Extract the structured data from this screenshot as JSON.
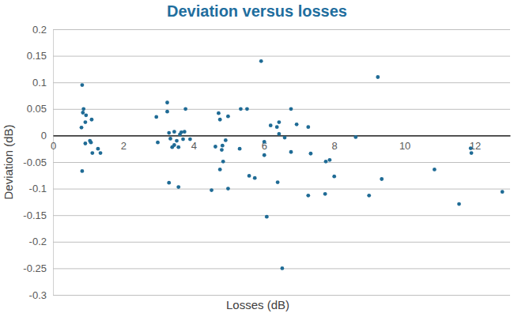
{
  "chart_data": {
    "type": "scatter",
    "title": "Deviation versus losses",
    "x_label": "Losses (dB)",
    "y_label": "Deviation (dB)",
    "color": "#1f6b95",
    "marker": "circle",
    "grid": true,
    "xlim": [
      0,
      13
    ],
    "xticks": [
      0,
      2,
      4,
      6,
      8,
      10,
      12
    ],
    "ylim": [
      -0.3,
      0.2
    ],
    "yticks": [
      0.2,
      0.15,
      0.1,
      0.05,
      0,
      -0.05,
      -0.1,
      -0.15,
      -0.2,
      -0.25,
      -0.3
    ],
    "x": [
      0.83,
      0.87,
      0.85,
      0.94,
      0.81,
      0.92,
      1.1,
      0.92,
      1.05,
      1.08,
      1.12,
      1.28,
      1.35,
      0.83,
      2.94,
      2.98,
      3.25,
      3.25,
      3.3,
      3.34,
      3.39,
      3.45,
      3.45,
      3.52,
      3.57,
      3.61,
      3.65,
      3.7,
      3.77,
      3.3,
      3.57,
      3.74,
      3.9,
      4.71,
      4.75,
      4.62,
      4.82,
      4.75,
      4.8,
      4.91,
      4.98,
      4.84,
      4.98,
      4.51,
      5.31,
      5.34,
      5.52,
      5.58,
      5.74,
      5.92,
      6.01,
      6.01,
      6.19,
      6.08,
      6.37,
      6.43,
      6.39,
      6.43,
      6.52,
      6.59,
      6.77,
      6.77,
      6.93,
      7.26,
      7.26,
      7.33,
      7.76,
      7.74,
      7.87,
      8.0,
      8.61,
      8.99,
      9.24,
      9.35,
      10.85,
      11.55,
      11.88,
      11.9,
      12.78
    ],
    "values": [
      0.095,
      0.05,
      0.043,
      0.038,
      0.015,
      0.025,
      0.03,
      -0.015,
      -0.01,
      -0.013,
      -0.033,
      -0.025,
      -0.033,
      -0.067,
      0.035,
      -0.013,
      0.062,
      0.045,
      0.005,
      -0.006,
      -0.022,
      -0.018,
      0.007,
      -0.01,
      -0.022,
      0.002,
      0.006,
      -0.007,
      0.05,
      -0.089,
      -0.097,
      0.007,
      -0.007,
      0.042,
      0.03,
      -0.021,
      -0.019,
      -0.064,
      -0.027,
      -0.009,
      0.036,
      -0.049,
      -0.1,
      -0.103,
      -0.025,
      0.05,
      0.05,
      -0.076,
      -0.08,
      0.14,
      -0.037,
      -0.012,
      0.019,
      -0.153,
      0.016,
      0.025,
      -0.088,
      0.003,
      -0.25,
      -0.004,
      0.05,
      -0.031,
      0.021,
      0.016,
      -0.113,
      -0.034,
      -0.049,
      -0.11,
      -0.046,
      -0.077,
      -0.003,
      -0.113,
      0.11,
      -0.082,
      -0.064,
      -0.129,
      -0.024,
      -0.033,
      -0.106
    ]
  }
}
